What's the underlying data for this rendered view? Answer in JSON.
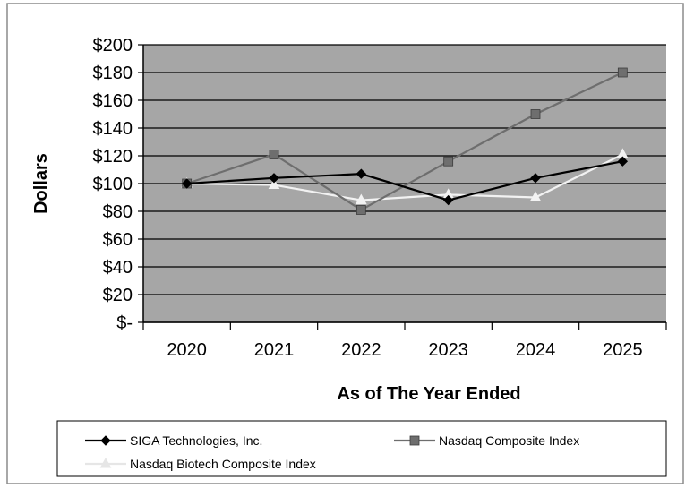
{
  "chart_data": {
    "type": "line",
    "title": "",
    "xlabel": "As of The Year Ended",
    "ylabel": "Dollars",
    "categories": [
      "2020",
      "2021",
      "2022",
      "2023",
      "2024",
      "2025"
    ],
    "ylim": [
      0,
      200
    ],
    "yticks": [
      0,
      20,
      40,
      60,
      80,
      100,
      120,
      140,
      160,
      180,
      200
    ],
    "ytick_labels": [
      "$-",
      "$20",
      "$40",
      "$60",
      "$80",
      "$100",
      "$120",
      "$140",
      "$160",
      "$180",
      "$200"
    ],
    "grid": true,
    "plot_background": "#a6a6a6",
    "legend_position": "bottom",
    "series": [
      {
        "name": "SIGA Technologies, Inc.",
        "values": [
          100,
          104,
          107,
          88,
          104,
          116
        ],
        "color": "#000000",
        "marker": "diamond"
      },
      {
        "name": "Nasdaq Composite Index",
        "values": [
          100,
          121,
          81,
          116,
          150,
          180
        ],
        "color": "#6e6e6e",
        "marker": "square"
      },
      {
        "name": "Nasdaq Biotech Composite Index",
        "values": [
          100,
          99,
          88,
          92,
          90,
          121
        ],
        "color": "#f2f2f2",
        "marker": "triangle"
      }
    ]
  }
}
